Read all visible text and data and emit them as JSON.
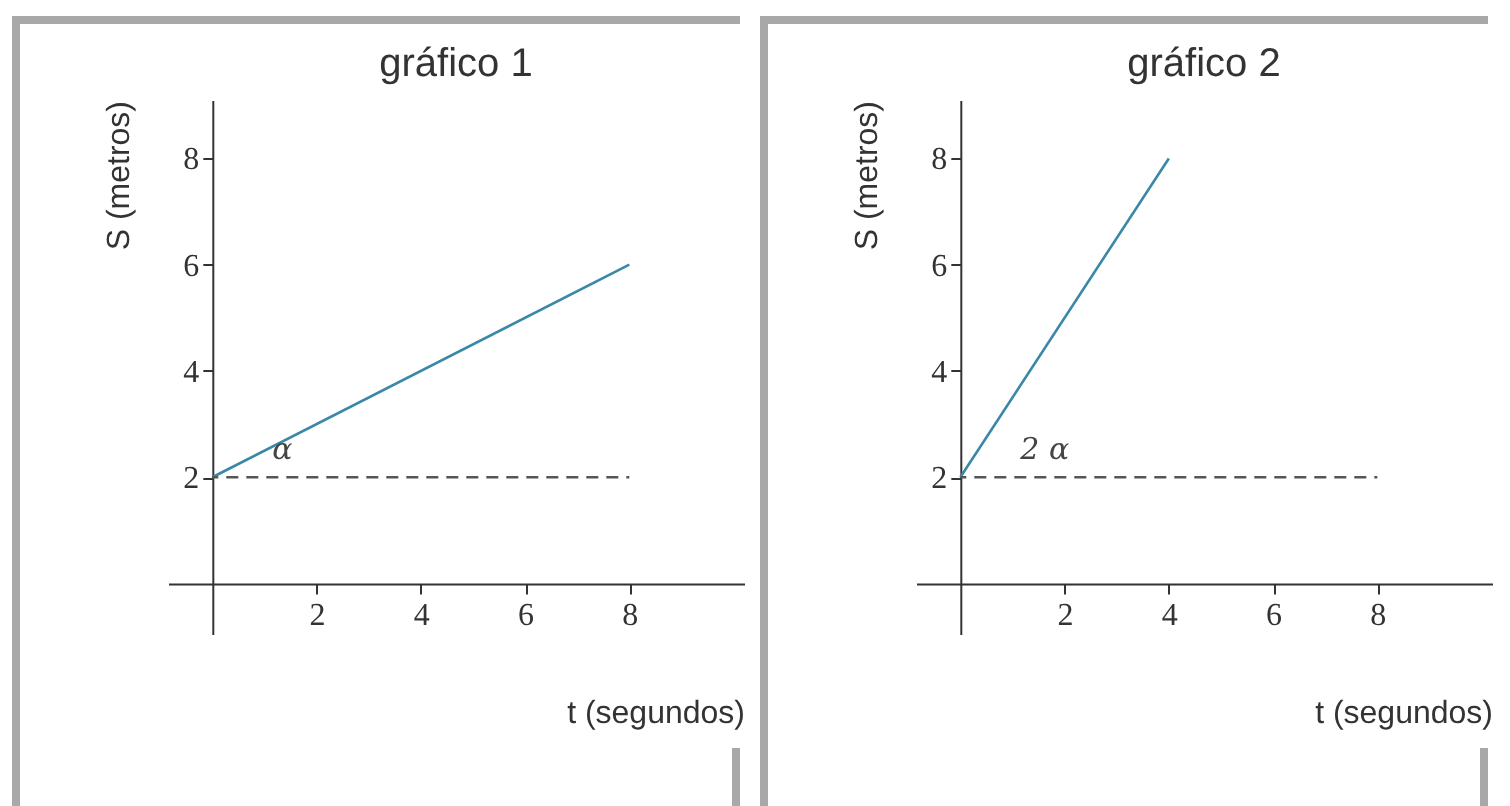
{
  "chart_data": [
    {
      "type": "line",
      "title": "gráfico 1",
      "xlabel": "t (segundos)",
      "ylabel": "S (metros)",
      "xlim": [
        -0.85,
        10.2
      ],
      "ylim": [
        -0.95,
        9.1
      ],
      "xticks": [
        2,
        4,
        6,
        8
      ],
      "yticks": [
        2,
        4,
        6,
        8
      ],
      "grid": false,
      "series": [
        {
          "color": "#3a87a8",
          "x": [
            0,
            8
          ],
          "values": [
            2,
            6
          ],
          "line_style": "solid"
        },
        {
          "color": "#555555",
          "x": [
            0,
            8
          ],
          "values": [
            2,
            2
          ],
          "line_style": "dashed"
        }
      ],
      "annotations": [
        "α"
      ]
    },
    {
      "type": "line",
      "title": "gráfico 2",
      "xlabel": "t (segundos)",
      "ylabel": "S (metros)",
      "xlim": [
        -0.85,
        10.2
      ],
      "ylim": [
        -0.95,
        9.1
      ],
      "xticks": [
        2,
        4,
        6,
        8
      ],
      "yticks": [
        2,
        4,
        6,
        8
      ],
      "grid": false,
      "series": [
        {
          "color": "#3a87a8",
          "x": [
            0,
            4
          ],
          "values": [
            2,
            8
          ],
          "line_style": "solid"
        },
        {
          "color": "#555555",
          "x": [
            0,
            8
          ],
          "values": [
            2,
            2
          ],
          "line_style": "dashed"
        }
      ],
      "annotations": [
        "2 α"
      ]
    }
  ]
}
